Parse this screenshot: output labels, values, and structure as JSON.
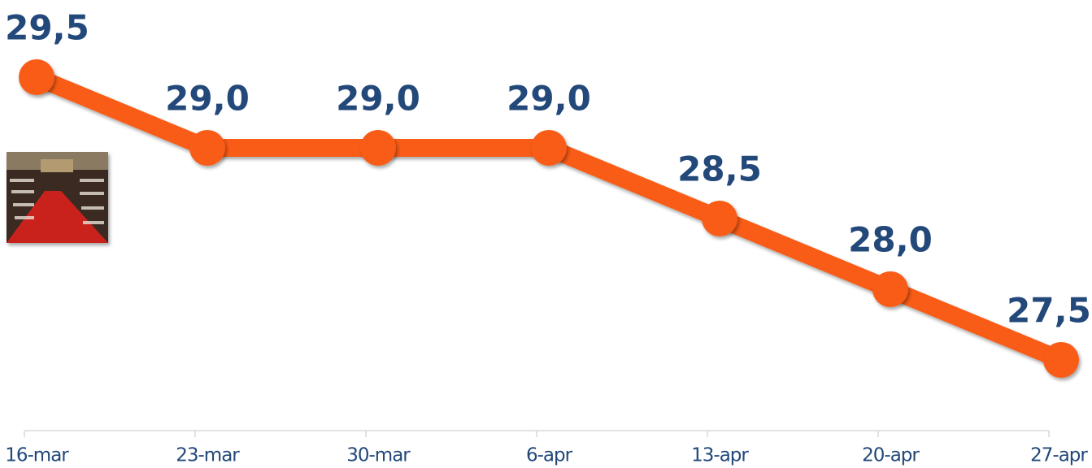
{
  "chart_data": {
    "type": "line",
    "categories": [
      "16-mar",
      "23-mar",
      "30-mar",
      "6-apr",
      "13-apr",
      "20-apr",
      "27-apr"
    ],
    "values": [
      29.5,
      29.0,
      29.0,
      29.0,
      28.5,
      28.0,
      27.5
    ],
    "value_labels": [
      "29,5",
      "29,0",
      "29,0",
      "29,0",
      "28,5",
      "28,0",
      "27,5"
    ],
    "color": "#f95b17",
    "ylim": [
      27,
      30
    ]
  }
}
